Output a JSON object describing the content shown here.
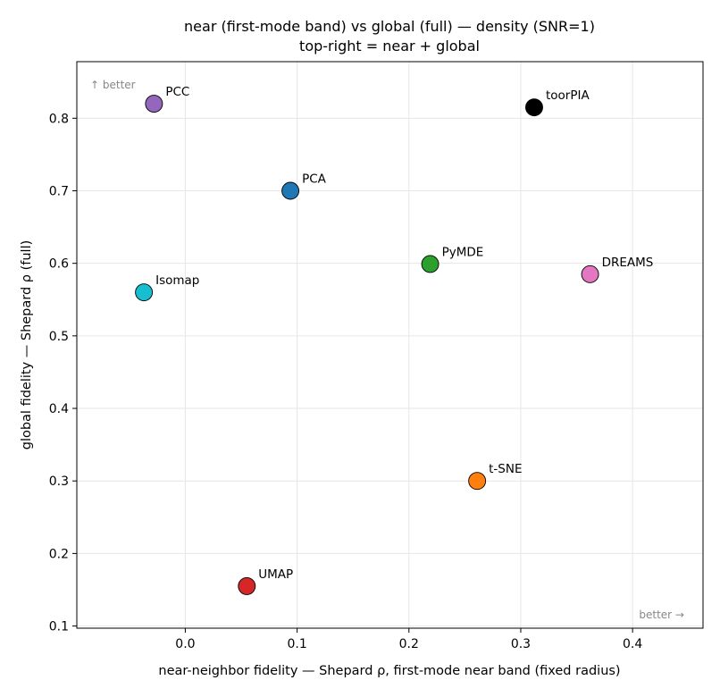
{
  "chart_data": {
    "type": "scatter",
    "title": "near (first-mode band) vs global (full) — density (SNR=1)",
    "subtitle": "top-right = near + global",
    "xlabel": "near-neighbor fidelity — Shepard ρ, first-mode near band (fixed radius)",
    "ylabel": "global fidelity — Shepard ρ (full)",
    "xlim": [
      -0.097,
      0.463
    ],
    "ylim": [
      0.097,
      0.878
    ],
    "xticks": [
      0.0,
      0.1,
      0.2,
      0.3,
      0.4
    ],
    "xtick_labels": [
      "0.0",
      "0.1",
      "0.2",
      "0.3",
      "0.4"
    ],
    "yticks": [
      0.1,
      0.2,
      0.3,
      0.4,
      0.5,
      0.6,
      0.7,
      0.8
    ],
    "ytick_labels": [
      "0.1",
      "0.2",
      "0.3",
      "0.4",
      "0.5",
      "0.6",
      "0.7",
      "0.8"
    ],
    "grid": true,
    "annotations": {
      "top_left": "↑ better",
      "bottom_right": "better →"
    },
    "points": [
      {
        "label": "PCC",
        "x": -0.028,
        "y": 0.82,
        "color": "#9467bd"
      },
      {
        "label": "toorPIA",
        "x": 0.312,
        "y": 0.815,
        "color": "#000000"
      },
      {
        "label": "PCA",
        "x": 0.094,
        "y": 0.7,
        "color": "#1f77b4"
      },
      {
        "label": "PyMDE",
        "x": 0.219,
        "y": 0.599,
        "color": "#2ca02c"
      },
      {
        "label": "DREAMS",
        "x": 0.362,
        "y": 0.585,
        "color": "#e377c2"
      },
      {
        "label": "Isomap",
        "x": -0.037,
        "y": 0.56,
        "color": "#17becf"
      },
      {
        "label": "t-SNE",
        "x": 0.261,
        "y": 0.3,
        "color": "#ff7f0e"
      },
      {
        "label": "UMAP",
        "x": 0.055,
        "y": 0.155,
        "color": "#d62728"
      }
    ]
  }
}
